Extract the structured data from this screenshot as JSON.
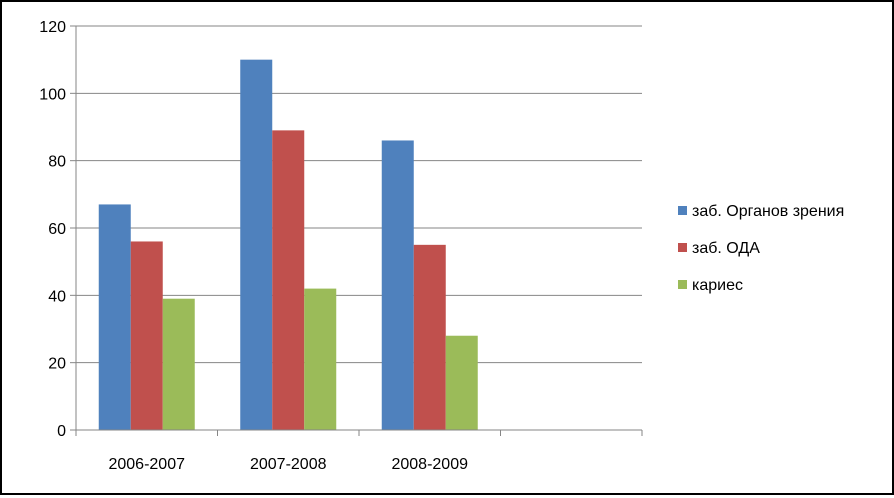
{
  "chart_data": {
    "type": "bar",
    "categories": [
      "2006-2007",
      "2007-2008",
      "2008-2009",
      ""
    ],
    "series": [
      {
        "name": "заб. Органов зрения",
        "values": [
          67,
          110,
          86,
          null
        ],
        "color": "#4F81BD"
      },
      {
        "name": "заб. ОДА",
        "values": [
          56,
          89,
          55,
          null
        ],
        "color": "#C0504D"
      },
      {
        "name": "кариес",
        "values": [
          39,
          42,
          28,
          null
        ],
        "color": "#9BBB59"
      }
    ],
    "ylim": [
      0,
      120
    ],
    "yticks": [
      0,
      20,
      40,
      60,
      80,
      100,
      120
    ],
    "grid": true,
    "legend": "right",
    "title": "",
    "xlabel": "",
    "ylabel": ""
  }
}
